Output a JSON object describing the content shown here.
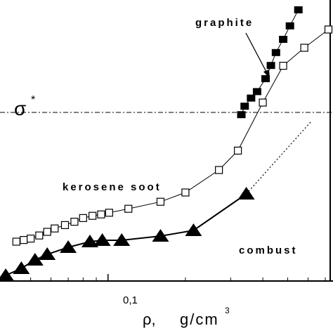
{
  "chart_data": {
    "type": "scatter",
    "x_scale": "log",
    "xlabel_symbol": "ρ,",
    "xlabel_unit": "g/cm",
    "xlabel_unit_sup": "3",
    "x_ticks": [
      {
        "value": 0.1,
        "label": "0,1"
      }
    ],
    "xlim": [
      0.038,
      0.75
    ],
    "ylim": [
      0,
      1
    ],
    "threshold": {
      "label": "σ",
      "label_sup": "*",
      "value": 0.6
    },
    "series": [
      {
        "name": "graphite",
        "marker": "filled-square",
        "color": "#000000",
        "x": [
          0.33,
          0.34,
          0.36,
          0.38,
          0.41,
          0.43,
          0.45,
          0.48,
          0.51,
          0.55
        ],
        "y": [
          0.592,
          0.622,
          0.651,
          0.674,
          0.72,
          0.767,
          0.813,
          0.86,
          0.908,
          0.965
        ]
      },
      {
        "name": "kerosene soot",
        "marker": "open-square",
        "color": "#000000",
        "x": [
          0.044,
          0.047,
          0.05,
          0.054,
          0.058,
          0.062,
          0.068,
          0.074,
          0.08,
          0.087,
          0.094,
          0.101,
          0.12,
          0.16,
          0.2,
          0.27,
          0.32,
          0.4,
          0.48,
          0.58,
          0.72
        ],
        "y": [
          0.14,
          0.146,
          0.151,
          0.162,
          0.175,
          0.187,
          0.199,
          0.211,
          0.224,
          0.232,
          0.237,
          0.243,
          0.257,
          0.282,
          0.315,
          0.395,
          0.464,
          0.635,
          0.766,
          0.83,
          0.895
        ]
      },
      {
        "name": "combust",
        "marker": "filled-triangle",
        "color": "#000000",
        "x": [
          0.04,
          0.046,
          0.052,
          0.058,
          0.07,
          0.085,
          0.095,
          0.113,
          0.16,
          0.215,
          0.345
        ],
        "y": [
          0.02,
          0.045,
          0.075,
          0.095,
          0.12,
          0.14,
          0.145,
          0.145,
          0.16,
          0.18,
          0.31
        ]
      }
    ],
    "extrapolation": {
      "x": [
        0.345,
        0.62
      ],
      "y": [
        0.31,
        0.57
      ]
    }
  }
}
